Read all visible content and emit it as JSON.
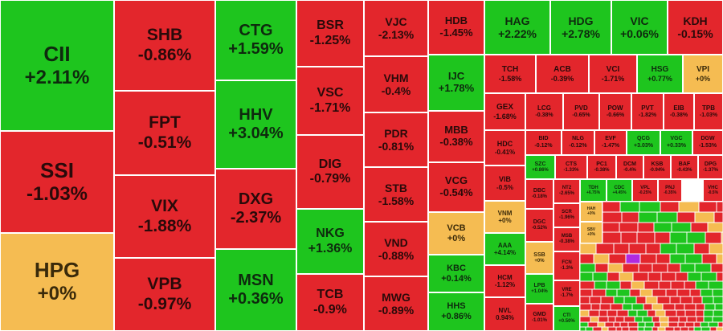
{
  "colors": {
    "up": "#1ec51e",
    "down": "#e3262c",
    "flat": "#f5bc52",
    "ceiling": "#b02ae0"
  },
  "tiles": [
    {
      "symbol": "CII",
      "change": "+2.11%",
      "trend": "up"
    },
    {
      "symbol": "SSI",
      "change": "-1.03%",
      "trend": "down"
    },
    {
      "symbol": "HPG",
      "change": "+0%",
      "trend": "flat"
    },
    {
      "symbol": "SHB",
      "change": "-0.86%",
      "trend": "down"
    },
    {
      "symbol": "FPT",
      "change": "-0.51%",
      "trend": "down"
    },
    {
      "symbol": "VIX",
      "change": "-1.88%",
      "trend": "down"
    },
    {
      "symbol": "VPB",
      "change": "-0.97%",
      "trend": "down"
    },
    {
      "symbol": "CTG",
      "change": "+1.59%",
      "trend": "up"
    },
    {
      "symbol": "HHV",
      "change": "+3.04%",
      "trend": "up"
    },
    {
      "symbol": "DXG",
      "change": "-2.37%",
      "trend": "down"
    },
    {
      "symbol": "MSN",
      "change": "+0.36%",
      "trend": "up"
    },
    {
      "symbol": "BSR",
      "change": "-1.25%",
      "trend": "down"
    },
    {
      "symbol": "VSC",
      "change": "-1.71%",
      "trend": "down"
    },
    {
      "symbol": "DIG",
      "change": "-0.79%",
      "trend": "down"
    },
    {
      "symbol": "NKG",
      "change": "+1.36%",
      "trend": "up"
    },
    {
      "symbol": "TCB",
      "change": "-0.9%",
      "trend": "down"
    },
    {
      "symbol": "VJC",
      "change": "-2.13%",
      "trend": "down"
    },
    {
      "symbol": "VHM",
      "change": "-0.4%",
      "trend": "down"
    },
    {
      "symbol": "PDR",
      "change": "-0.81%",
      "trend": "down"
    },
    {
      "symbol": "STB",
      "change": "-1.58%",
      "trend": "down"
    },
    {
      "symbol": "VND",
      "change": "-0.88%",
      "trend": "down"
    },
    {
      "symbol": "MWG",
      "change": "-0.89%",
      "trend": "down"
    },
    {
      "symbol": "HDB",
      "change": "-1.45%",
      "trend": "down"
    },
    {
      "symbol": "IJC",
      "change": "+1.78%",
      "trend": "up"
    },
    {
      "symbol": "MBB",
      "change": "-0.38%",
      "trend": "down"
    },
    {
      "symbol": "VCG",
      "change": "-0.54%",
      "trend": "down"
    },
    {
      "symbol": "VCB",
      "change": "+0%",
      "trend": "flat"
    },
    {
      "symbol": "KBC",
      "change": "+0.14%",
      "trend": "up"
    },
    {
      "symbol": "HHS",
      "change": "+0.86%",
      "trend": "up"
    },
    {
      "symbol": "HAG",
      "change": "+2.22%",
      "trend": "up"
    },
    {
      "symbol": "HDG",
      "change": "+2.78%",
      "trend": "up"
    },
    {
      "symbol": "VIC",
      "change": "+0.06%",
      "trend": "up"
    },
    {
      "symbol": "KDH",
      "change": "-0.15%",
      "trend": "down"
    },
    {
      "symbol": "TCH",
      "change": "-1.58%",
      "trend": "down"
    },
    {
      "symbol": "ACB",
      "change": "-0.39%",
      "trend": "down"
    },
    {
      "symbol": "VCI",
      "change": "-1.71%",
      "trend": "down"
    },
    {
      "symbol": "HSG",
      "change": "+0.77%",
      "trend": "up"
    },
    {
      "symbol": "VPI",
      "change": "+0%",
      "trend": "flat"
    },
    {
      "symbol": "GEX",
      "change": "-1.68%",
      "trend": "down"
    },
    {
      "symbol": "LCG",
      "change": "-0.38%",
      "trend": "down"
    },
    {
      "symbol": "PVD",
      "change": "-0.65%",
      "trend": "down"
    },
    {
      "symbol": "POW",
      "change": "-0.66%",
      "trend": "down"
    },
    {
      "symbol": "PVT",
      "change": "-1.82%",
      "trend": "down"
    },
    {
      "symbol": "EIB",
      "change": "-0.38%",
      "trend": "down"
    },
    {
      "symbol": "TPB",
      "change": "-1.03%",
      "trend": "down"
    },
    {
      "symbol": "HDC",
      "change": "-0.41%",
      "trend": "down"
    },
    {
      "symbol": "BID",
      "change": "-0.12%",
      "trend": "down"
    },
    {
      "symbol": "NLG",
      "change": "-0.12%",
      "trend": "down"
    },
    {
      "symbol": "EVF",
      "change": "-1.47%",
      "trend": "down"
    },
    {
      "symbol": "QCG",
      "change": "+3.03%",
      "trend": "up"
    },
    {
      "symbol": "VGC",
      "change": "+0.33%",
      "trend": "up"
    },
    {
      "symbol": "DGW",
      "change": "-1.53%",
      "trend": "down"
    },
    {
      "symbol": "VIB",
      "change": "-0.5%",
      "trend": "down"
    },
    {
      "symbol": "SZC",
      "change": "+0.86%",
      "trend": "up"
    },
    {
      "symbol": "CTS",
      "change": "-1.33%",
      "trend": "down"
    },
    {
      "symbol": "PC1",
      "change": "-0.38%",
      "trend": "down"
    },
    {
      "symbol": "DCM",
      "change": "-0.4%",
      "trend": "down"
    },
    {
      "symbol": "KSB",
      "change": "-0.94%",
      "trend": "down"
    },
    {
      "symbol": "BAF",
      "change": "-0.43%",
      "trend": "down"
    },
    {
      "symbol": "DPG",
      "change": "-1.37%",
      "trend": "down"
    },
    {
      "symbol": "DBC",
      "change": "-0.18%",
      "trend": "down"
    },
    {
      "symbol": "NT2",
      "change": "-2.65%",
      "trend": "down"
    },
    {
      "symbol": "TDH",
      "change": "+6.75%",
      "trend": "up"
    },
    {
      "symbol": "CDC",
      "change": "+4.45%",
      "trend": "up"
    },
    {
      "symbol": "VPL",
      "change": "-0.25%",
      "trend": "down"
    },
    {
      "symbol": "PNJ",
      "change": "-0.35%",
      "trend": "down"
    },
    {
      "symbol": "VHC",
      "change": "-0.5%",
      "trend": "down"
    },
    {
      "symbol": "VNM",
      "change": "+0%",
      "trend": "flat"
    },
    {
      "symbol": "SCR",
      "change": "-1.96%",
      "trend": "down"
    },
    {
      "symbol": "HAH",
      "change": "+0%",
      "trend": "flat"
    },
    {
      "symbol": "DGC",
      "change": "-0.52%",
      "trend": "down"
    },
    {
      "symbol": "SBV",
      "change": "+0%",
      "trend": "flat"
    },
    {
      "symbol": "AAA",
      "change": "+4.14%",
      "trend": "up"
    },
    {
      "symbol": "MSB",
      "change": "-0.38%",
      "trend": "down"
    },
    {
      "symbol": "SSB",
      "change": "+0%",
      "trend": "flat"
    },
    {
      "symbol": "HCM",
      "change": "-1.12%",
      "trend": "down"
    },
    {
      "symbol": "LPB",
      "change": "+1.04%",
      "trend": "up"
    },
    {
      "symbol": "FCN",
      "change": "-1.3%",
      "trend": "down"
    },
    {
      "symbol": "VRE",
      "change": "-1.7%",
      "trend": "down"
    },
    {
      "symbol": "NVL",
      "change": "0.94%",
      "trend": "down"
    },
    {
      "symbol": "GMD",
      "change": "-1.01%",
      "trend": "down"
    },
    {
      "symbol": "CTI",
      "change": "+0.50%",
      "trend": "up"
    }
  ]
}
